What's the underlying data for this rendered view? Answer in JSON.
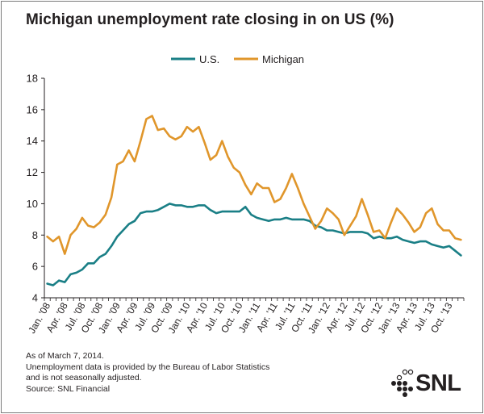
{
  "chart_data": {
    "type": "line",
    "title": "Michigan unemployment rate closing in on US (%)",
    "xlabel": "",
    "ylabel": "",
    "ylim": [
      4,
      18
    ],
    "yticks": [
      4,
      6,
      8,
      10,
      12,
      14,
      16,
      18
    ],
    "grid": false,
    "legend_position": "top-center",
    "tick_labels": [
      "Jan. '08",
      "Apr. '08",
      "Jul. '08",
      "Oct. '08",
      "Jan. '09",
      "Apr. '09",
      "Jul. '09",
      "Oct. '09",
      "Jan. '10",
      "Apr. '10",
      "Jul. '10",
      "Oct. '10",
      "Jan. '11",
      "Apr. '11",
      "Jul. '11",
      "Oct. '11",
      "Jan. '12",
      "Apr. '12",
      "Jul. '12",
      "Oct. '12",
      "Jan. '13",
      "Apr. '13",
      "Jul. '13",
      "Oct. '13"
    ],
    "months": [
      "Jan-08",
      "Feb-08",
      "Mar-08",
      "Apr-08",
      "May-08",
      "Jun-08",
      "Jul-08",
      "Aug-08",
      "Sep-08",
      "Oct-08",
      "Nov-08",
      "Dec-08",
      "Jan-09",
      "Feb-09",
      "Mar-09",
      "Apr-09",
      "May-09",
      "Jun-09",
      "Jul-09",
      "Aug-09",
      "Sep-09",
      "Oct-09",
      "Nov-09",
      "Dec-09",
      "Jan-10",
      "Feb-10",
      "Mar-10",
      "Apr-10",
      "May-10",
      "Jun-10",
      "Jul-10",
      "Aug-10",
      "Sep-10",
      "Oct-10",
      "Nov-10",
      "Dec-10",
      "Jan-11",
      "Feb-11",
      "Mar-11",
      "Apr-11",
      "May-11",
      "Jun-11",
      "Jul-11",
      "Aug-11",
      "Sep-11",
      "Oct-11",
      "Nov-11",
      "Dec-11",
      "Jan-12",
      "Feb-12",
      "Mar-12",
      "Apr-12",
      "May-12",
      "Jun-12",
      "Jul-12",
      "Aug-12",
      "Sep-12",
      "Oct-12",
      "Nov-12",
      "Dec-12",
      "Jan-13",
      "Feb-13",
      "Mar-13",
      "Apr-13",
      "May-13",
      "Jun-13",
      "Jul-13",
      "Aug-13",
      "Sep-13",
      "Oct-13",
      "Nov-13",
      "Dec-13"
    ],
    "series": [
      {
        "name": "U.S.",
        "color": "#1a7f86",
        "values": [
          4.9,
          4.8,
          5.1,
          5.0,
          5.5,
          5.6,
          5.8,
          6.2,
          6.2,
          6.6,
          6.8,
          7.3,
          7.9,
          8.3,
          8.7,
          8.9,
          9.4,
          9.5,
          9.5,
          9.6,
          9.8,
          10.0,
          9.9,
          9.9,
          9.8,
          9.8,
          9.9,
          9.9,
          9.6,
          9.4,
          9.5,
          9.5,
          9.5,
          9.5,
          9.8,
          9.3,
          9.1,
          9.0,
          8.9,
          9.0,
          9.0,
          9.1,
          9.0,
          9.0,
          9.0,
          8.9,
          8.6,
          8.5,
          8.3,
          8.3,
          8.2,
          8.1,
          8.2,
          8.2,
          8.2,
          8.1,
          7.8,
          7.9,
          7.8,
          7.8,
          7.9,
          7.7,
          7.6,
          7.5,
          7.6,
          7.6,
          7.4,
          7.3,
          7.2,
          7.3,
          7.0,
          6.7
        ]
      },
      {
        "name": "Michigan",
        "color": "#e0962b",
        "values": [
          7.9,
          7.6,
          7.9,
          6.8,
          8.0,
          8.4,
          9.1,
          8.6,
          8.5,
          8.8,
          9.3,
          10.4,
          12.5,
          12.7,
          13.4,
          12.7,
          14.0,
          15.4,
          15.6,
          14.7,
          14.8,
          14.3,
          14.1,
          14.3,
          14.9,
          14.6,
          14.9,
          13.9,
          12.8,
          13.1,
          14.0,
          13.0,
          12.3,
          12.0,
          11.2,
          10.6,
          11.3,
          11.0,
          11.0,
          10.1,
          10.3,
          11.0,
          11.9,
          11.0,
          10.0,
          9.2,
          8.4,
          8.9,
          9.7,
          9.4,
          9.0,
          8.0,
          8.6,
          9.2,
          10.3,
          9.3,
          8.2,
          8.3,
          7.8,
          8.8,
          9.7,
          9.3,
          8.8,
          8.2,
          8.5,
          9.4,
          9.7,
          8.7,
          8.3,
          8.3,
          7.8,
          7.7
        ]
      }
    ]
  },
  "footnote": {
    "lines": [
      "As of March 7, 2014.",
      "Unemployment data is provided by the Bureau of Labor Statistics",
      "and is not seasonally adjusted.",
      "Source: SNL Financial"
    ]
  },
  "logo": {
    "text": "SNL",
    "icon": "snl-dots-icon"
  }
}
